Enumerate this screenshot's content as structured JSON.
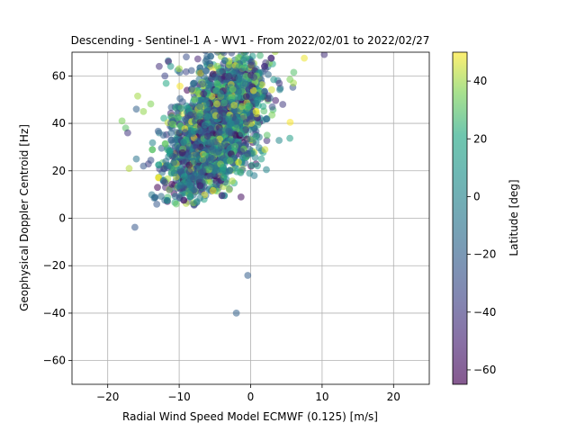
{
  "chart_data": {
    "type": "scatter",
    "title": "Descending - Sentinel-1 A - WV1 - From 2022/02/01 to 2022/02/27",
    "xlabel": "Radial Wind Speed Model ECMWF (0.125) [m/s]",
    "ylabel": "Geophysical Doppler Centroid [Hz]",
    "xlim": [
      -25,
      25
    ],
    "ylim": [
      -70,
      70
    ],
    "xticks": [
      -20,
      -10,
      0,
      10,
      20
    ],
    "yticks": [
      -60,
      -40,
      -20,
      0,
      20,
      40,
      60
    ],
    "grid": true,
    "colorbar": {
      "label": "Latitude [deg]",
      "range": [
        -65,
        50
      ],
      "ticks": [
        -60,
        -40,
        -20,
        0,
        20,
        40
      ],
      "colormap": "viridis",
      "alpha": 0.6
    },
    "points": [
      {
        "x": -16.2,
        "y": -3.8,
        "lat": -25
      },
      {
        "x": -0.4,
        "y": -24.1,
        "lat": -22
      },
      {
        "x": -2.0,
        "y": -40.0,
        "lat": -20
      },
      {
        "x": -18.0,
        "y": 41.0,
        "lat": 35
      },
      {
        "x": -17.5,
        "y": 38.0,
        "lat": 30
      },
      {
        "x": -17.2,
        "y": 36.0,
        "lat": -42
      },
      {
        "x": -15.8,
        "y": 51.5,
        "lat": 40
      },
      {
        "x": -15.0,
        "y": 45.0,
        "lat": 38
      },
      {
        "x": -16.0,
        "y": 46.0,
        "lat": -20
      },
      {
        "x": -17.0,
        "y": 21.0,
        "lat": 42
      },
      {
        "x": -16.0,
        "y": 25.0,
        "lat": -10
      },
      {
        "x": -15.0,
        "y": 22.0,
        "lat": -25
      },
      {
        "x": -13.5,
        "y": 8.5,
        "lat": -15
      },
      {
        "x": -12.0,
        "y": 15.0,
        "lat": -40
      },
      {
        "x": -12.8,
        "y": 64.0,
        "lat": -45
      },
      {
        "x": -11.5,
        "y": 66.0,
        "lat": -50
      },
      {
        "x": -11.2,
        "y": 64.0,
        "lat": 10
      },
      {
        "x": -9.0,
        "y": 68.0,
        "lat": -30
      },
      {
        "x": -10.0,
        "y": 63.0,
        "lat": 40
      },
      {
        "x": -12.0,
        "y": 60.0,
        "lat": -35
      },
      {
        "x": -7.5,
        "y": 7.0,
        "lat": 5
      },
      {
        "x": -3.0,
        "y": 12.0,
        "lat": 38
      },
      {
        "x": 0.5,
        "y": 18.0,
        "lat": -5
      },
      {
        "x": 2.2,
        "y": 20.5,
        "lat": 0
      },
      {
        "x": 1.5,
        "y": 25.0,
        "lat": 15
      },
      {
        "x": 2.0,
        "y": 29.0,
        "lat": 45
      },
      {
        "x": 2.3,
        "y": 35.0,
        "lat": 30
      },
      {
        "x": 10.3,
        "y": 69.0,
        "lat": -45
      },
      {
        "x": 7.5,
        "y": 67.5,
        "lat": 48
      },
      {
        "x": 6.0,
        "y": 57.0,
        "lat": 40
      },
      {
        "x": 4.5,
        "y": 48.0,
        "lat": -40
      },
      {
        "x": 3.0,
        "y": 43.5,
        "lat": 35
      },
      {
        "x": 5.5,
        "y": 58.5,
        "lat": 35
      }
    ],
    "cloud_note": "Dense cloud of several thousand points between x -14..6 and y 5..70; values generated procedurally by the script"
  }
}
